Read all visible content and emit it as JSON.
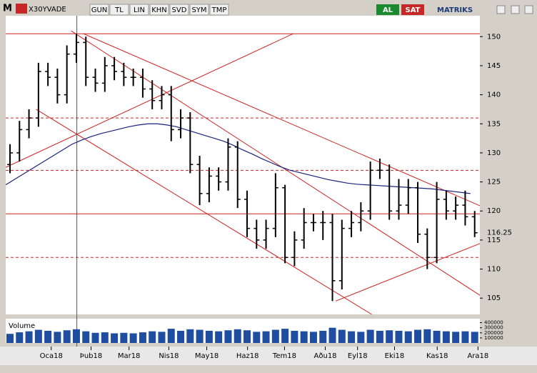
{
  "toolbar": {
    "logo": "M",
    "symbol": "X30YVADE",
    "buttons": [
      "GUN",
      "TL",
      "LIN",
      "KHN",
      "SVD",
      "SYM",
      "TMP"
    ],
    "buy": "AL",
    "sell": "SAT",
    "brand": "MATRIKS"
  },
  "chart_data": {
    "type": "ohlc",
    "color": "#000000",
    "x": [
      0,
      1,
      2,
      3,
      4,
      5,
      6,
      7,
      8,
      9,
      10,
      11,
      12,
      13,
      14,
      15,
      16,
      17,
      18,
      19,
      20,
      21,
      22,
      23,
      24,
      25,
      26,
      27,
      28,
      29,
      30,
      31,
      32,
      33,
      34,
      35,
      36,
      37,
      38,
      39,
      40,
      41,
      42,
      43,
      44,
      45,
      46,
      47,
      48,
      49
    ],
    "open": [
      128,
      130,
      134,
      136,
      144,
      143,
      140,
      147,
      149,
      143,
      142,
      145,
      144,
      143,
      143,
      141,
      139,
      140,
      134,
      136,
      128,
      123,
      126,
      125,
      131,
      122,
      117,
      115,
      117,
      124,
      112,
      115,
      118,
      118,
      118,
      108,
      117,
      118,
      120,
      127,
      127,
      120,
      121,
      124,
      116,
      112,
      122,
      120,
      121,
      119
    ],
    "high": [
      131.5,
      135.5,
      137.5,
      145.5,
      145.5,
      144.5,
      148.5,
      150.5,
      150,
      144.5,
      146.5,
      146.5,
      145.5,
      144.5,
      144.5,
      142.5,
      141.5,
      141.5,
      137.5,
      137,
      129.5,
      127.5,
      127.5,
      132.5,
      132,
      123.5,
      118.5,
      118.5,
      126.5,
      124.5,
      116.5,
      120.5,
      119.5,
      120,
      119.5,
      118.5,
      120,
      121.5,
      128.5,
      129,
      128,
      125.5,
      125.5,
      125,
      117,
      125,
      123.5,
      122.5,
      123.5,
      120
    ],
    "low": [
      126.5,
      128.5,
      132.5,
      134.5,
      141.5,
      138.5,
      138.5,
      145.5,
      141.5,
      140.5,
      140.5,
      142.5,
      141.5,
      141.5,
      139.5,
      137.5,
      137.5,
      132,
      132.5,
      126.5,
      121,
      121.5,
      123.5,
      123.5,
      120.5,
      115.5,
      113.5,
      113.5,
      115.5,
      111,
      110.5,
      113.5,
      116.5,
      115,
      104.5,
      106.5,
      115.5,
      116.5,
      118.5,
      125.5,
      118.5,
      118.5,
      119.5,
      114.5,
      110,
      111,
      118.5,
      118.5,
      117.5,
      115.5
    ],
    "close": [
      130,
      134,
      136,
      144,
      143,
      140,
      147,
      149,
      143,
      142,
      145,
      144,
      143,
      143,
      141,
      139,
      140,
      134,
      136,
      128,
      123,
      126,
      125,
      131,
      122,
      117,
      115,
      117,
      124,
      112,
      115,
      118,
      118,
      118,
      108,
      117,
      118,
      120,
      127,
      127,
      120,
      121,
      124,
      116,
      112,
      122,
      120,
      121,
      119,
      116.25
    ],
    "moving_average": {
      "color": "#1a237e",
      "values": [
        124.5,
        125.5,
        126.5,
        127.5,
        128.5,
        129.5,
        130.5,
        131.5,
        132.2,
        132.8,
        133.3,
        133.7,
        134.1,
        134.5,
        134.8,
        135,
        135,
        134.8,
        134.5,
        134,
        133.5,
        133,
        132.5,
        132,
        131.3,
        130.5,
        129.8,
        129,
        128.3,
        127.6,
        127,
        126.6,
        126.2,
        125.8,
        125.4,
        125.1,
        124.8,
        124.6,
        124.5,
        124.4,
        124.3,
        124.2,
        124.1,
        124,
        123.9,
        123.8,
        123.6,
        123.4,
        123.2,
        123
      ]
    },
    "last_price": 116.25,
    "line_color": "#cc2222",
    "hlines": [
      {
        "y": 150.5,
        "dashed": false
      },
      {
        "y": 119.5,
        "dashed": false
      },
      {
        "y": 136,
        "dashed": true
      },
      {
        "y": 127,
        "dashed": true
      },
      {
        "y": 112,
        "dashed": true
      }
    ],
    "trendlines": [
      {
        "x": [
          8.2,
          50
        ],
        "y": [
          150.5,
          120.9
        ]
      },
      {
        "x": [
          3.2,
          38.6
        ],
        "y": [
          137.5,
          102.2
        ]
      },
      {
        "x": [
          0,
          30.3
        ],
        "y": [
          127.5,
          150.5
        ]
      },
      {
        "x": [
          6.9,
          50
        ],
        "y": [
          151,
          105.5
        ]
      },
      {
        "x": [
          34.8,
          50
        ],
        "y": [
          104.5,
          114.4
        ]
      }
    ],
    "cursor_x": 7.5,
    "xlim": [
      0,
      50
    ],
    "ylim": [
      102.2,
      153.6
    ],
    "yticks": [
      105,
      110,
      115,
      120,
      125,
      130,
      135,
      140,
      145,
      150
    ],
    "xticks": [
      {
        "value": 4.8,
        "label": "Oca18"
      },
      {
        "value": 9,
        "label": "Þub18"
      },
      {
        "value": 13,
        "label": "Mar18"
      },
      {
        "value": 17.2,
        "label": "Nis18"
      },
      {
        "value": 21.2,
        "label": "May18"
      },
      {
        "value": 25.5,
        "label": "Haz18"
      },
      {
        "value": 29.4,
        "label": "Tem18"
      },
      {
        "value": 33.7,
        "label": "Aðu18"
      },
      {
        "value": 37.1,
        "label": "Eyl18"
      },
      {
        "value": 41,
        "label": "Eki18"
      },
      {
        "value": 45.5,
        "label": "Kas18"
      },
      {
        "value": 49.8,
        "label": "Ara18"
      }
    ],
    "volume": {
      "label": "Volume",
      "color": "#1f4ea0",
      "ylim": [
        0,
        450000
      ],
      "yticks": [
        100000,
        200000,
        300000,
        400000
      ],
      "values": [
        180000,
        210000,
        230000,
        260000,
        240000,
        220000,
        250000,
        270000,
        230000,
        200000,
        210000,
        190000,
        200000,
        190000,
        210000,
        230000,
        220000,
        280000,
        240000,
        270000,
        260000,
        240000,
        230000,
        250000,
        270000,
        250000,
        220000,
        230000,
        260000,
        280000,
        240000,
        230000,
        220000,
        240000,
        300000,
        260000,
        230000,
        220000,
        260000,
        240000,
        250000,
        240000,
        230000,
        260000,
        270000,
        240000,
        230000,
        220000,
        230000,
        220000
      ]
    }
  }
}
